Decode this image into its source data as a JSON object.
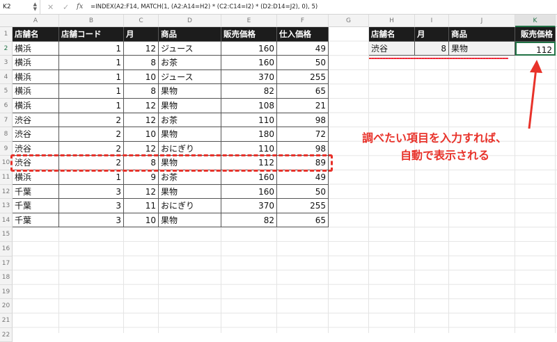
{
  "formula_bar": {
    "name_box": "K2",
    "fx": "fx",
    "formula": "=INDEX(A2:F14, MATCH(1, (A2:A14=H2) * (C2:C14=I2) * (D2:D14=J2), 0), 5)"
  },
  "columns": [
    "A",
    "B",
    "C",
    "D",
    "E",
    "F",
    "G",
    "H",
    "I",
    "J",
    "K"
  ],
  "rows": [
    "1",
    "2",
    "3",
    "4",
    "5",
    "6",
    "7",
    "8",
    "9",
    "10",
    "11",
    "12",
    "13",
    "14",
    "15",
    "16",
    "17",
    "18",
    "19",
    "20",
    "21",
    "22"
  ],
  "table": {
    "headers": [
      "店舗名",
      "店舗コード",
      "月",
      "商品",
      "販売価格",
      "仕入価格"
    ],
    "rows": [
      [
        "横浜",
        "1",
        "12",
        "ジュース",
        "160",
        "49"
      ],
      [
        "横浜",
        "1",
        "8",
        "お茶",
        "160",
        "50"
      ],
      [
        "横浜",
        "1",
        "10",
        "ジュース",
        "370",
        "255"
      ],
      [
        "横浜",
        "1",
        "8",
        "果物",
        "82",
        "65"
      ],
      [
        "横浜",
        "1",
        "12",
        "果物",
        "108",
        "21"
      ],
      [
        "渋谷",
        "2",
        "12",
        "お茶",
        "110",
        "98"
      ],
      [
        "渋谷",
        "2",
        "10",
        "果物",
        "180",
        "72"
      ],
      [
        "渋谷",
        "2",
        "12",
        "おにぎり",
        "110",
        "98"
      ],
      [
        "渋谷",
        "2",
        "8",
        "果物",
        "112",
        "89"
      ],
      [
        "横浜",
        "1",
        "9",
        "お茶",
        "160",
        "49"
      ],
      [
        "千葉",
        "3",
        "12",
        "果物",
        "160",
        "50"
      ],
      [
        "千葉",
        "3",
        "11",
        "おにぎり",
        "370",
        "255"
      ],
      [
        "千葉",
        "3",
        "10",
        "果物",
        "82",
        "65"
      ]
    ]
  },
  "lookup": {
    "headers": [
      "店舗名",
      "月",
      "商品",
      "販売価格"
    ],
    "values": [
      "渋谷",
      "8",
      "果物",
      "112"
    ]
  },
  "annotation": {
    "line1": "調べたい項目を入力すれば、",
    "line2": "自動で表示される",
    "color": "#e8322a"
  },
  "accent": "#217346"
}
